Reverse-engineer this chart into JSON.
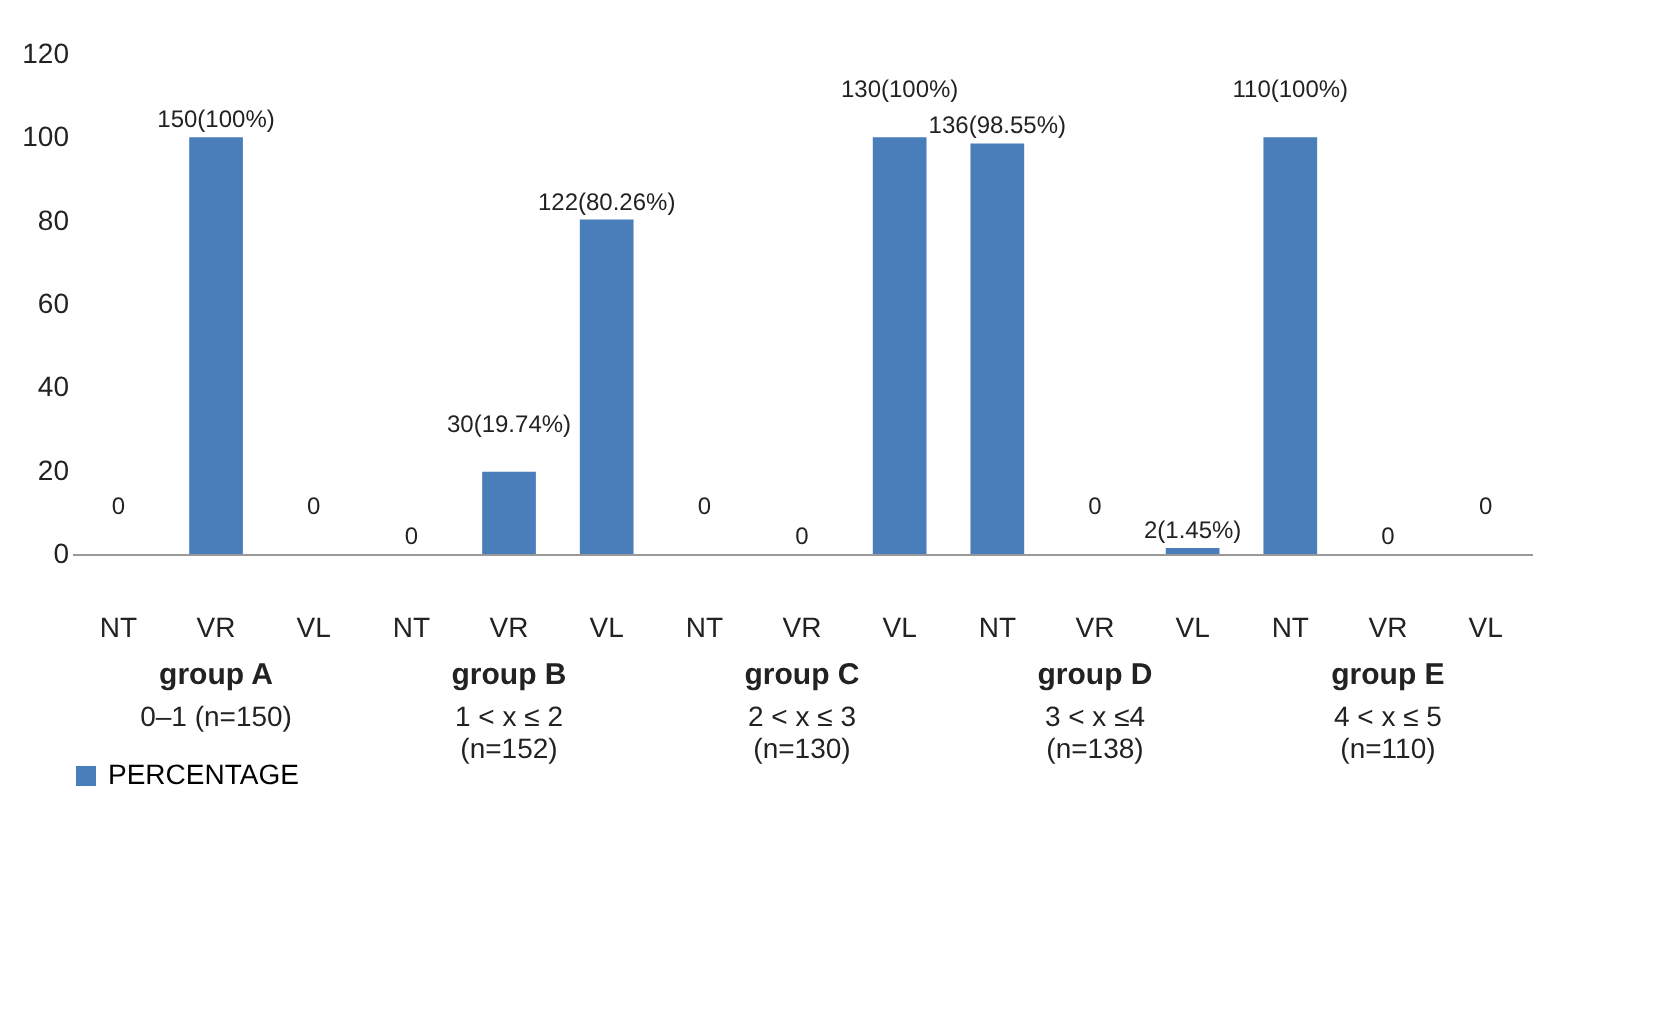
{
  "chart_data": {
    "type": "bar",
    "categories": [
      "NT",
      "VR",
      "VL",
      "NT",
      "VR",
      "VL",
      "NT",
      "VR",
      "VL",
      "NT",
      "VR",
      "VL",
      "NT",
      "VR",
      "VL"
    ],
    "series": [
      {
        "name": "PERCENTAGE",
        "color": "#4a7ebb",
        "values": [
          0,
          100,
          0,
          0,
          19.74,
          80.26,
          0,
          0,
          100,
          98.55,
          0,
          1.45,
          100,
          0,
          0
        ],
        "value_labels": [
          "0",
          "150(100%)",
          "0",
          "0",
          "30(19.74%)",
          "122(80.26%)",
          "0",
          "0",
          "130(100%)",
          "136(98.55%)",
          "0",
          "2(1.45%)",
          "110(100%)",
          "0",
          "0"
        ]
      }
    ],
    "ylim": [
      0,
      120
    ],
    "yticks": [
      0,
      20,
      40,
      60,
      80,
      100,
      120
    ],
    "grid": false,
    "legend": "bottom",
    "annotations": [
      "group A",
      "0–1 (n=150)",
      "group B",
      "1 < x ≤ 2\n(n=152)",
      "group C",
      "2 < x ≤ 3\n(n=130)",
      "group D",
      "3 < x ≤4\n(n=138)",
      "group E",
      "4 < x ≤ 5\n(n=110)"
    ]
  }
}
